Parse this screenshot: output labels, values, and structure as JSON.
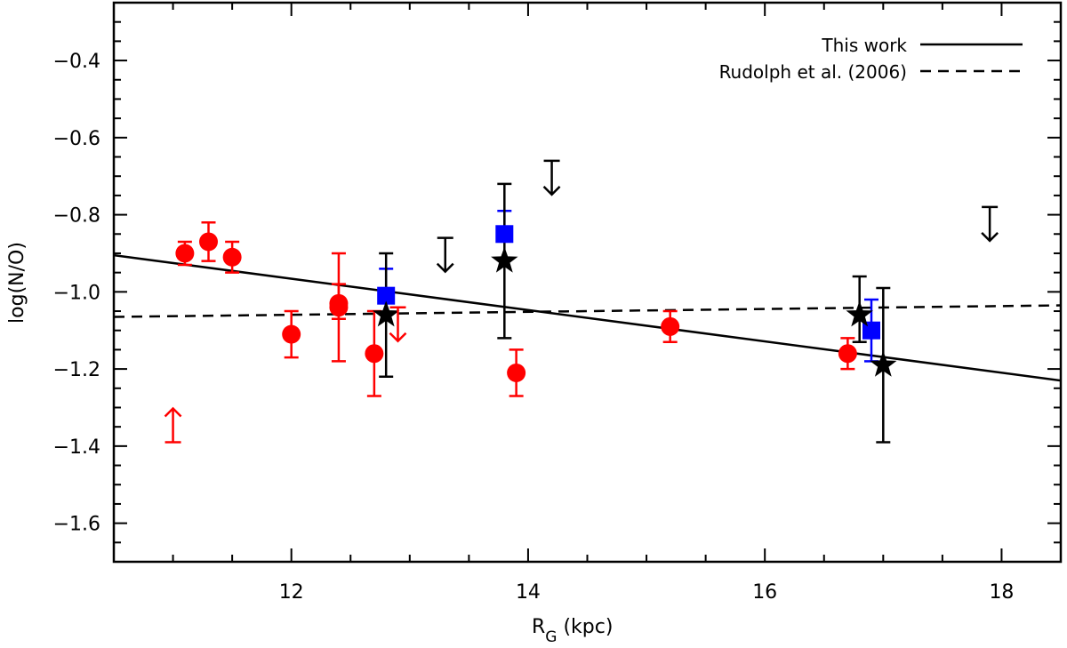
{
  "chart_data": {
    "type": "scatter",
    "xlabel_main": "R",
    "xlabel_sub": "G",
    "xlabel_unit": " (kpc)",
    "ylabel": "log(N/O)",
    "xlim": [
      10.5,
      18.5
    ],
    "ylim": [
      -1.7,
      -0.25
    ],
    "x_ticks": [
      12,
      14,
      16,
      18
    ],
    "x_tick_labels": [
      "12",
      "14",
      "16",
      "18"
    ],
    "y_ticks": [
      -1.6,
      -1.4,
      -1.2,
      -1.0,
      -0.8,
      -0.6,
      -0.4
    ],
    "y_tick_labels": [
      "−1.6",
      "−1.4",
      "−1.2",
      "−1.0",
      "−0.8",
      "−0.6",
      "−0.4"
    ],
    "legend": {
      "position": "top-right",
      "entries": [
        {
          "label": "This work",
          "style": "solid"
        },
        {
          "label": "Rudolph et al. (2006)",
          "style": "dashed"
        }
      ]
    },
    "lines": [
      {
        "name": "This work",
        "style": "solid",
        "x": [
          10.5,
          18.5
        ],
        "y": [
          -0.905,
          -1.23
        ]
      },
      {
        "name": "Rudolph et al. (2006)",
        "style": "dashed",
        "x": [
          10.5,
          18.5
        ],
        "y": [
          -1.065,
          -1.035
        ]
      }
    ],
    "series": [
      {
        "name": "red circles",
        "color": "#ff0000",
        "marker": "circle",
        "points": [
          {
            "x": 11.1,
            "y": -0.9,
            "err_lo": 0.03,
            "err_hi": 0.03
          },
          {
            "x": 11.3,
            "y": -0.87,
            "err_lo": 0.05,
            "err_hi": 0.05
          },
          {
            "x": 11.5,
            "y": -0.91,
            "err_lo": 0.04,
            "err_hi": 0.04
          },
          {
            "x": 12.0,
            "y": -1.11,
            "err_lo": 0.06,
            "err_hi": 0.06
          },
          {
            "x": 12.4,
            "y": -1.03,
            "err_lo": 0.15,
            "err_hi": 0.13
          },
          {
            "x": 12.4,
            "y": -1.04,
            "err_lo": 0.03,
            "err_hi": 0.06
          },
          {
            "x": 12.7,
            "y": -1.16,
            "err_lo": 0.11,
            "err_hi": 0.11
          },
          {
            "x": 13.9,
            "y": -1.21,
            "err_lo": 0.06,
            "err_hi": 0.06
          },
          {
            "x": 15.2,
            "y": -1.09,
            "err_lo": 0.04,
            "err_hi": 0.04
          },
          {
            "x": 16.7,
            "y": -1.16,
            "err_lo": 0.04,
            "err_hi": 0.04
          }
        ]
      },
      {
        "name": "blue squares",
        "color": "#0000ff",
        "marker": "square",
        "points": [
          {
            "x": 12.8,
            "y": -1.01,
            "err_lo": 0.0,
            "err_hi": 0.07
          },
          {
            "x": 13.8,
            "y": -0.85,
            "err_lo": 0.0,
            "err_hi": 0.06
          },
          {
            "x": 16.9,
            "y": -1.1,
            "err_lo": 0.08,
            "err_hi": 0.08
          }
        ]
      },
      {
        "name": "black stars",
        "color": "#000000",
        "marker": "star",
        "points": [
          {
            "x": 12.8,
            "y": -1.06,
            "err_lo": 0.16,
            "err_hi": 0.16
          },
          {
            "x": 13.8,
            "y": -0.92,
            "err_lo": 0.2,
            "err_hi": 0.2
          },
          {
            "x": 16.8,
            "y": -1.06,
            "err_lo": 0.07,
            "err_hi": 0.1
          },
          {
            "x": 17.0,
            "y": -1.19,
            "err_lo": 0.2,
            "err_hi": 0.2
          }
        ]
      }
    ],
    "limits": [
      {
        "type": "lower",
        "color": "#ff0000",
        "x": 11.0,
        "y": -1.39
      },
      {
        "type": "upper",
        "color": "#ff0000",
        "x": 12.9,
        "y": -1.04
      },
      {
        "type": "upper",
        "color": "#000000",
        "x": 13.3,
        "y": -0.86
      },
      {
        "type": "upper",
        "color": "#000000",
        "x": 14.2,
        "y": -0.66
      },
      {
        "type": "upper",
        "color": "#000000",
        "x": 17.9,
        "y": -0.78
      }
    ]
  }
}
